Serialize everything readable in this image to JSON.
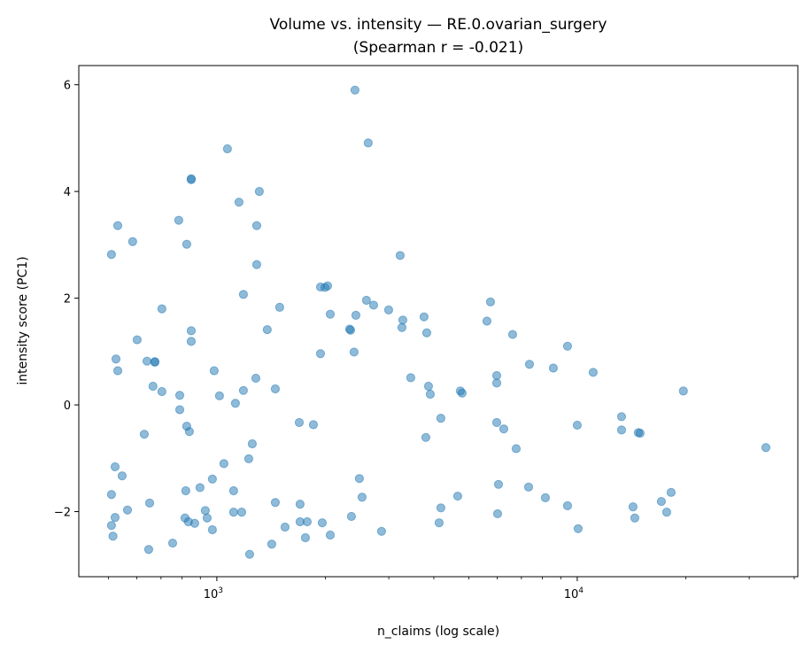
{
  "chart_data": {
    "type": "scatter",
    "title": "Volume vs. intensity — RE.0.ovarian_surgery",
    "subtitle": "(Spearman r = -0.021)",
    "xlabel": "n_claims (log scale)",
    "ylabel": "intensity score (PC1)",
    "xscale": "log",
    "xlim": [
      414,
      40930
    ],
    "ylim": [
      -3.22,
      6.36
    ],
    "x_ticks": [
      {
        "value": 1000,
        "base": "10",
        "exp": "3"
      },
      {
        "value": 10000,
        "base": "10",
        "exp": "4"
      }
    ],
    "y_ticks": [
      {
        "value": -2,
        "label": "−2"
      },
      {
        "value": 0,
        "label": "0"
      },
      {
        "value": 2,
        "label": "2"
      },
      {
        "value": 4,
        "label": "4"
      },
      {
        "value": 6,
        "label": "6"
      }
    ],
    "grid": false,
    "marker_color": "#1f77b4",
    "marker_alpha": 0.5,
    "points": [
      [
        510,
        2.82
      ],
      [
        531,
        3.36
      ],
      [
        584,
        3.06
      ],
      [
        784,
        3.46
      ],
      [
        825,
        3.01
      ],
      [
        849,
        4.22
      ],
      [
        849,
        4.24
      ],
      [
        1070,
        4.8
      ],
      [
        1152,
        3.8
      ],
      [
        1312,
        4.0
      ],
      [
        1290,
        3.36
      ],
      [
        1290,
        2.63
      ],
      [
        2417,
        5.9
      ],
      [
        2630,
        4.91
      ],
      [
        3226,
        2.8
      ],
      [
        525,
        0.86
      ],
      [
        531,
        0.64
      ],
      [
        601,
        1.22
      ],
      [
        640,
        0.82
      ],
      [
        673,
        0.81
      ],
      [
        673,
        0.8
      ],
      [
        704,
        1.8
      ],
      [
        849,
        1.39
      ],
      [
        849,
        1.19
      ],
      [
        983,
        0.64
      ],
      [
        1185,
        2.07
      ],
      [
        1380,
        1.41
      ],
      [
        1494,
        1.83
      ],
      [
        1939,
        2.21
      ],
      [
        1995,
        2.2
      ],
      [
        2029,
        2.23
      ],
      [
        2064,
        1.7
      ],
      [
        1939,
        0.96
      ],
      [
        2336,
        1.42
      ],
      [
        2350,
        1.4
      ],
      [
        2431,
        1.68
      ],
      [
        2403,
        0.99
      ],
      [
        2601,
        1.96
      ],
      [
        2722,
        1.87
      ],
      [
        2997,
        1.78
      ],
      [
        3281,
        1.59
      ],
      [
        3263,
        1.45
      ],
      [
        3758,
        1.65
      ],
      [
        3823,
        1.35
      ],
      [
        5616,
        1.57
      ],
      [
        5745,
        1.93
      ],
      [
        6617,
        1.32
      ],
      [
        5978,
        0.55
      ],
      [
        5978,
        0.41
      ],
      [
        7369,
        0.76
      ],
      [
        9397,
        1.1
      ],
      [
        8584,
        0.69
      ],
      [
        11071,
        0.61
      ],
      [
        19700,
        0.26
      ],
      [
        3452,
        0.51
      ],
      [
        3866,
        0.35
      ],
      [
        3910,
        0.2
      ],
      [
        4739,
        0.26
      ],
      [
        4793,
        0.22
      ],
      [
        665,
        0.35
      ],
      [
        704,
        0.25
      ],
      [
        789,
        0.18
      ],
      [
        789,
        -0.09
      ],
      [
        825,
        -0.4
      ],
      [
        839,
        -0.5
      ],
      [
        629,
        -0.55
      ],
      [
        1017,
        0.17
      ],
      [
        1126,
        0.03
      ],
      [
        1185,
        0.27
      ],
      [
        1283,
        0.5
      ],
      [
        1453,
        0.3
      ],
      [
        1693,
        -0.33
      ],
      [
        1853,
        -0.37
      ],
      [
        4184,
        -0.25
      ],
      [
        3801,
        -0.61
      ],
      [
        5978,
        -0.33
      ],
      [
        6254,
        -0.45
      ],
      [
        6769,
        -0.82
      ],
      [
        10000,
        -0.38
      ],
      [
        13271,
        -0.22
      ],
      [
        13271,
        -0.47
      ],
      [
        14774,
        -0.52
      ],
      [
        14942,
        -0.53
      ],
      [
        33370,
        -0.8
      ],
      [
        522,
        -1.16
      ],
      [
        546,
        -1.33
      ],
      [
        1046,
        -1.1
      ],
      [
        1254,
        -0.73
      ],
      [
        1226,
        -1.01
      ],
      [
        1113,
        -1.61
      ],
      [
        820,
        -1.61
      ],
      [
        898,
        -1.55
      ],
      [
        972,
        -1.39
      ],
      [
        510,
        -1.68
      ],
      [
        522,
        -2.11
      ],
      [
        565,
        -1.97
      ],
      [
        651,
        -1.84
      ],
      [
        510,
        -2.26
      ],
      [
        515,
        -2.46
      ],
      [
        647,
        -2.71
      ],
      [
        754,
        -2.59
      ],
      [
        816,
        -2.12
      ],
      [
        834,
        -2.19
      ],
      [
        868,
        -2.22
      ],
      [
        929,
        -1.98
      ],
      [
        940,
        -2.12
      ],
      [
        972,
        -2.34
      ],
      [
        1113,
        -2.01
      ],
      [
        1172,
        -2.01
      ],
      [
        1233,
        -2.8
      ],
      [
        1420,
        -2.61
      ],
      [
        1453,
        -1.83
      ],
      [
        1546,
        -2.29
      ],
      [
        1702,
        -1.86
      ],
      [
        1702,
        -2.19
      ],
      [
        1781,
        -2.19
      ],
      [
        1761,
        -2.49
      ],
      [
        1961,
        -2.21
      ],
      [
        2064,
        -2.44
      ],
      [
        2363,
        -2.09
      ],
      [
        2486,
        -1.38
      ],
      [
        2529,
        -1.73
      ],
      [
        2864,
        -2.37
      ],
      [
        4184,
        -1.93
      ],
      [
        4137,
        -2.21
      ],
      [
        4659,
        -1.71
      ],
      [
        6046,
        -1.49
      ],
      [
        6012,
        -2.04
      ],
      [
        7328,
        -1.54
      ],
      [
        8158,
        -1.74
      ],
      [
        9397,
        -1.89
      ],
      [
        10057,
        -2.32
      ],
      [
        14281,
        -1.91
      ],
      [
        14444,
        -2.12
      ],
      [
        17117,
        -1.81
      ],
      [
        17708,
        -2.01
      ],
      [
        18215,
        -1.64
      ]
    ]
  }
}
